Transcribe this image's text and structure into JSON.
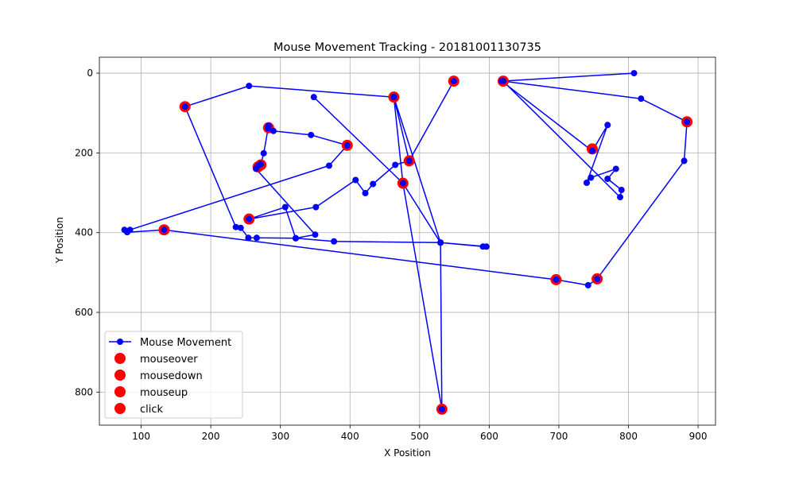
{
  "chart_data": {
    "type": "scatter",
    "title": "Mouse Movement Tracking - 20181001130735",
    "xlabel": "X Position",
    "ylabel": "Y Position",
    "xlim": [
      40,
      925
    ],
    "ylim": [
      -40,
      883
    ],
    "y_inverted": true,
    "grid": true,
    "xticks": [
      100,
      200,
      300,
      400,
      500,
      600,
      700,
      800,
      900
    ],
    "yticks": [
      0,
      200,
      400,
      600,
      800
    ],
    "legend_position": "lower-left",
    "line_color": "#0000ff",
    "event_color": "#ff0000",
    "series": [
      {
        "name": "Mouse Movement",
        "marker": "line+point",
        "points": [
          [
            808,
            0
          ],
          [
            618,
            20
          ],
          [
            748,
            195
          ],
          [
            770,
            130
          ],
          [
            740,
            275
          ],
          [
            746,
            262
          ],
          [
            782,
            240
          ],
          [
            770,
            265
          ],
          [
            790,
            293
          ],
          [
            788,
            311
          ],
          [
            620,
            20
          ],
          [
            818,
            64
          ],
          [
            884,
            122
          ],
          [
            880,
            220
          ],
          [
            755,
            516
          ],
          [
            742,
            532
          ],
          [
            696,
            518
          ],
          [
            133,
            393
          ],
          [
            80,
            399
          ],
          [
            76,
            393
          ],
          [
            84,
            393
          ],
          [
            370,
            232
          ],
          [
            396,
            181
          ],
          [
            344,
            155
          ],
          [
            290,
            145
          ],
          [
            282,
            138
          ],
          [
            283,
            132
          ],
          [
            276,
            201
          ],
          [
            272,
            228
          ],
          [
            268,
            232
          ],
          [
            265,
            240
          ],
          [
            350,
            405
          ],
          [
            322,
            414
          ],
          [
            266,
            413
          ],
          [
            254,
            413
          ],
          [
            243,
            388
          ],
          [
            236,
            386
          ],
          [
            163,
            84
          ],
          [
            255,
            32
          ],
          [
            463,
            60
          ],
          [
            485,
            220
          ],
          [
            549,
            20
          ],
          [
            485,
            220
          ],
          [
            465,
            230
          ],
          [
            433,
            278
          ],
          [
            422,
            301
          ],
          [
            408,
            268
          ],
          [
            351,
            336
          ],
          [
            255,
            366
          ],
          [
            307,
            336
          ],
          [
            322,
            414
          ],
          [
            377,
            422
          ],
          [
            530,
            425
          ],
          [
            591,
            435
          ],
          [
            596,
            435
          ],
          [
            530,
            425
          ],
          [
            463,
            60
          ],
          [
            476,
            276
          ],
          [
            532,
            843
          ],
          [
            530,
            425
          ],
          [
            476,
            276
          ],
          [
            348,
            60
          ]
        ]
      },
      {
        "name": "mouseover",
        "marker": "event",
        "points": []
      },
      {
        "name": "mousedown",
        "marker": "event",
        "points": []
      },
      {
        "name": "mouseup",
        "marker": "event",
        "points": []
      },
      {
        "name": "click",
        "marker": "event",
        "points": [
          [
            163,
            84
          ],
          [
            283,
            137
          ],
          [
            396,
            181
          ],
          [
            463,
            60
          ],
          [
            485,
            220
          ],
          [
            549,
            20
          ],
          [
            620,
            20
          ],
          [
            748,
            190
          ],
          [
            884,
            122
          ],
          [
            476,
            276
          ],
          [
            268,
            235
          ],
          [
            272,
            230
          ],
          [
            255,
            366
          ],
          [
            133,
            393
          ],
          [
            696,
            518
          ],
          [
            755,
            516
          ],
          [
            532,
            843
          ]
        ]
      }
    ]
  }
}
